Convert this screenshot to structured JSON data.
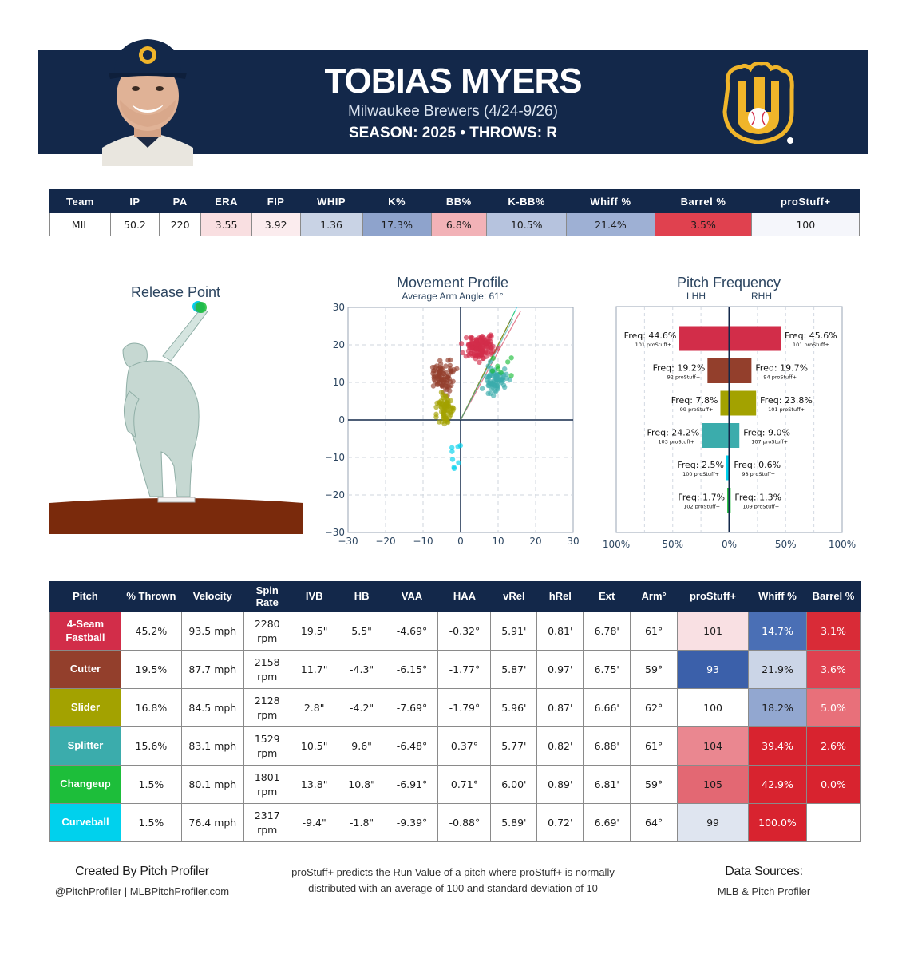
{
  "header": {
    "name": "TOBIAS MYERS",
    "team_line": "Milwaukee Brewers (4/24-9/26)",
    "season_line": "SEASON: 2025 • THROWS: R"
  },
  "stats": {
    "headers": [
      "Team",
      "IP",
      "PA",
      "ERA",
      "FIP",
      "WHIP",
      "K%",
      "BB%",
      "K-BB%",
      "Whiff %",
      "Barrel %",
      "proStuff+"
    ],
    "values": [
      "MIL",
      "50.2",
      "220",
      "3.55",
      "3.92",
      "1.36",
      "17.3%",
      "6.8%",
      "10.5%",
      "21.4%",
      "3.5%",
      "100"
    ],
    "colors": [
      "#ffffff",
      "#ffffff",
      "#ffffff",
      "#f9dfe1",
      "#fbecee",
      "#c9d3e5",
      "#8ea3cc",
      "#f2b2b7",
      "#b6c3de",
      "#9eb0d4",
      "#e0414f",
      "#f5f6fb"
    ]
  },
  "release_point": {
    "title": "Release Point"
  },
  "chart_data": [
    {
      "type": "scatter",
      "title": "Movement Profile",
      "subtitle": "Average Arm Angle: 61°",
      "xlim": [
        -30,
        30
      ],
      "ylim": [
        -30,
        30
      ],
      "xticks": [
        "−30",
        "−20",
        "−10",
        "0",
        "10",
        "20",
        "30"
      ],
      "yticks": [
        "30",
        "20",
        "10",
        "0",
        "−10",
        "−20",
        "−30"
      ],
      "series": [
        {
          "name": "4-Seam Fastball",
          "color": "#d22d49",
          "hb_center": 5.5,
          "ivb_center": 19.5,
          "spread_x": 2.6,
          "spread_y": 2.0,
          "count": 140
        },
        {
          "name": "Cutter",
          "color": "#933f2c",
          "hb_center": -4.3,
          "ivb_center": 11.7,
          "spread_x": 2.3,
          "spread_y": 2.6,
          "count": 80
        },
        {
          "name": "Slider",
          "color": "#a3a200",
          "hb_center": -4.2,
          "ivb_center": 2.8,
          "spread_x": 1.8,
          "spread_y": 3.2,
          "count": 70
        },
        {
          "name": "Splitter",
          "color": "#3bacac",
          "hb_center": 9.6,
          "ivb_center": 10.5,
          "spread_x": 2.2,
          "spread_y": 2.3,
          "count": 70
        },
        {
          "name": "Changeup",
          "color": "#1dbe3a",
          "hb_center": 10.8,
          "ivb_center": 13.8,
          "spread_x": 2.8,
          "spread_y": 2.2,
          "count": 8
        },
        {
          "name": "Curveball",
          "color": "#00d1ed",
          "hb_center": -1.8,
          "ivb_center": -9.4,
          "spread_x": 1.2,
          "spread_y": 3.0,
          "count": 8
        }
      ]
    },
    {
      "type": "bar",
      "title": "Pitch Frequency",
      "left_label": "LHH",
      "right_label": "RHH",
      "xticks": [
        "100%",
        "50%",
        "0%",
        "50%",
        "100%"
      ],
      "bars": [
        {
          "pitch": "4-Seam Fastball",
          "color": "#d22d49",
          "lhh": 44.6,
          "rhh": 45.6,
          "lhh_text": "Freq: 44.6%",
          "rhh_text": "Freq: 45.6%",
          "lhh_stuff": "101 proStuff+",
          "rhh_stuff": "101 proStuff+"
        },
        {
          "pitch": "Cutter",
          "color": "#933f2c",
          "lhh": 19.2,
          "rhh": 19.7,
          "lhh_text": "Freq: 19.2%",
          "rhh_text": "Freq: 19.7%",
          "lhh_stuff": "92 proStuff+",
          "rhh_stuff": "94 proStuff+"
        },
        {
          "pitch": "Slider",
          "color": "#a3a200",
          "lhh": 7.8,
          "rhh": 23.8,
          "lhh_text": "Freq: 7.8%",
          "rhh_text": "Freq: 23.8%",
          "lhh_stuff": "99 proStuff+",
          "rhh_stuff": "101 proStuff+"
        },
        {
          "pitch": "Splitter",
          "color": "#3bacac",
          "lhh": 24.2,
          "rhh": 9.0,
          "lhh_text": "Freq: 24.2%",
          "rhh_text": "Freq: 9.0%",
          "lhh_stuff": "103 proStuff+",
          "rhh_stuff": "107 proStuff+"
        },
        {
          "pitch": "Curveball",
          "color": "#00d1ed",
          "lhh": 2.5,
          "rhh": 0.6,
          "lhh_text": "Freq: 2.5%",
          "rhh_text": "Freq: 0.6%",
          "lhh_stuff": "100 proStuff+",
          "rhh_stuff": "98 proStuff+"
        },
        {
          "pitch": "Changeup",
          "color": "#1dbe3a",
          "lhh": 1.7,
          "rhh": 1.3,
          "lhh_text": "Freq: 1.7%",
          "rhh_text": "Freq: 1.3%",
          "lhh_stuff": "102 proStuff+",
          "rhh_stuff": "109 proStuff+"
        }
      ]
    },
    {
      "type": "table",
      "headers": [
        "Pitch",
        "% Thrown",
        "Velocity",
        "Spin Rate",
        "IVB",
        "HB",
        "VAA",
        "HAA",
        "vRel",
        "hRel",
        "Ext",
        "Arm°",
        "proStuff+",
        "Whiff %",
        "Barrel %"
      ],
      "rows": [
        {
          "pitch": "4-Seam Fastball",
          "color": "#d22d49",
          "thrown": "45.2%",
          "velocity": "93.5 mph",
          "spin": "2280 rpm",
          "ivb": "19.5\"",
          "hb": "5.5\"",
          "vaa": "-4.69°",
          "haa": "-0.32°",
          "vrel": "5.91'",
          "hrel": "0.81'",
          "ext": "6.78'",
          "arm": "61°",
          "stuff": "101",
          "whiff": "14.7%",
          "barrel": "3.1%",
          "stuff_bg": "#f9e0e3",
          "whiff_bg": "#4a6fb5",
          "barrel_bg": "#d92b37"
        },
        {
          "pitch": "Cutter",
          "color": "#933f2c",
          "thrown": "19.5%",
          "velocity": "87.7 mph",
          "spin": "2158 rpm",
          "ivb": "11.7\"",
          "hb": "-4.3\"",
          "vaa": "-6.15°",
          "haa": "-1.77°",
          "vrel": "5.87'",
          "hrel": "0.97'",
          "ext": "6.75'",
          "arm": "59°",
          "stuff": "93",
          "whiff": "21.9%",
          "barrel": "3.6%",
          "stuff_bg": "#3b60aa",
          "whiff_bg": "#cbd5e7",
          "barrel_bg": "#e04150"
        },
        {
          "pitch": "Slider",
          "color": "#a3a200",
          "thrown": "16.8%",
          "velocity": "84.5 mph",
          "spin": "2128 rpm",
          "ivb": "2.8\"",
          "hb": "-4.2\"",
          "vaa": "-7.69°",
          "haa": "-1.79°",
          "vrel": "5.96'",
          "hrel": "0.87'",
          "ext": "6.66'",
          "arm": "62°",
          "stuff": "100",
          "whiff": "18.2%",
          "barrel": "5.0%",
          "stuff_bg": "#ffffff",
          "whiff_bg": "#92a7d0",
          "barrel_bg": "#e8707a"
        },
        {
          "pitch": "Splitter",
          "color": "#3bacac",
          "thrown": "15.6%",
          "velocity": "83.1 mph",
          "spin": "1529 rpm",
          "ivb": "10.5\"",
          "hb": "9.6\"",
          "vaa": "-6.48°",
          "haa": "0.37°",
          "vrel": "5.77'",
          "hrel": "0.82'",
          "ext": "6.88'",
          "arm": "61°",
          "stuff": "104",
          "whiff": "39.4%",
          "barrel": "2.6%",
          "stuff_bg": "#ea8790",
          "whiff_bg": "#d8232f",
          "barrel_bg": "#d8232f"
        },
        {
          "pitch": "Changeup",
          "color": "#1dbe3a",
          "thrown": "1.5%",
          "velocity": "80.1 mph",
          "spin": "1801 rpm",
          "ivb": "13.8\"",
          "hb": "10.8\"",
          "vaa": "-6.91°",
          "haa": "0.71°",
          "vrel": "6.00'",
          "hrel": "0.89'",
          "ext": "6.81'",
          "arm": "59°",
          "stuff": "105",
          "whiff": "42.9%",
          "barrel": "0.0%",
          "stuff_bg": "#e36873",
          "whiff_bg": "#d8232f",
          "barrel_bg": "#d8232f"
        },
        {
          "pitch": "Curveball",
          "color": "#00d1ed",
          "thrown": "1.5%",
          "velocity": "76.4 mph",
          "spin": "2317 rpm",
          "ivb": "-9.4\"",
          "hb": "-1.8\"",
          "vaa": "-9.39°",
          "haa": "-0.88°",
          "vrel": "5.89'",
          "hrel": "0.72'",
          "ext": "6.69'",
          "arm": "64°",
          "stuff": "99",
          "whiff": "100.0%",
          "barrel": "",
          "stuff_bg": "#dfe5f0",
          "whiff_bg": "#d8232f",
          "barrel_bg": "#ffffff"
        }
      ]
    }
  ],
  "footer": {
    "left_big": "Created By Pitch Profiler",
    "left_small": "@PitchProfiler | MLBPitchProfiler.com",
    "mid_line1": "proStuff+ predicts the Run Value of a pitch where proStuff+ is normally",
    "mid_line2": "distributed with an average of 100 and standard deviation of 10",
    "right_big": "Data Sources:",
    "right_small": "MLB & Pitch Profiler"
  },
  "colors": {
    "navy": "#13284a",
    "mound": "#7a2a0c",
    "logo_gold": "#f0b52a"
  }
}
